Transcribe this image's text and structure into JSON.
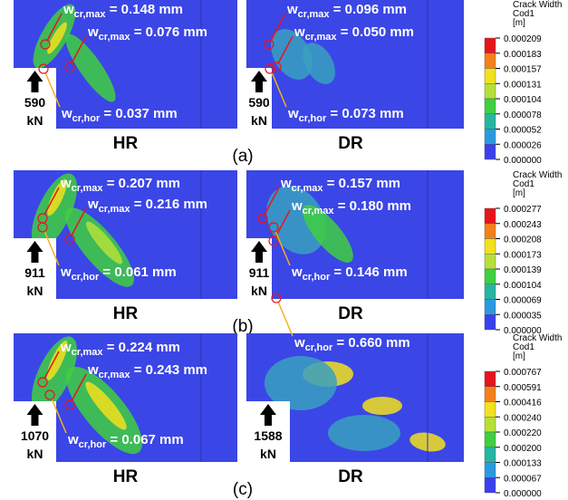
{
  "rows": [
    {
      "label": "(a)",
      "panels": [
        {
          "name": "HR",
          "load": "590",
          "unit": "kN",
          "annotations": [
            {
              "symbol": "w",
              "subscript": "cr,max",
              "text": " = 0.148 mm"
            },
            {
              "symbol": "w",
              "subscript": "cr,max",
              "text": " = 0.076 mm"
            },
            {
              "symbol": "w",
              "subscript": "cr,hor",
              "text": " = 0.037 mm"
            }
          ]
        },
        {
          "name": "DR",
          "load": "590",
          "unit": "kN",
          "annotations": [
            {
              "symbol": "w",
              "subscript": "cr,max",
              "text": " = 0.096 mm"
            },
            {
              "symbol": "w",
              "subscript": "cr,max",
              "text": " = 0.050 mm"
            },
            {
              "symbol": "w",
              "subscript": "cr,hor",
              "text": " = 0.073 mm"
            }
          ]
        }
      ],
      "legend": {
        "title": [
          "Crack Width",
          "Cod1",
          "[m]"
        ],
        "ticks": [
          "0.000209",
          "0.000183",
          "0.000157",
          "0.000131",
          "0.000104",
          "0.000078",
          "0.000052",
          "0.000026",
          "0.000000"
        ]
      }
    },
    {
      "label": "(b)",
      "panels": [
        {
          "name": "HR",
          "load": "911",
          "unit": "kN",
          "annotations": [
            {
              "symbol": "w",
              "subscript": "cr,max",
              "text": " = 0.207 mm"
            },
            {
              "symbol": "w",
              "subscript": "cr,max",
              "text": " = 0.216 mm"
            },
            {
              "symbol": "w",
              "subscript": "cr,hor",
              "text": " = 0.061 mm"
            }
          ]
        },
        {
          "name": "DR",
          "load": "911",
          "unit": "kN",
          "annotations": [
            {
              "symbol": "w",
              "subscript": "cr,max",
              "text": " = 0.157 mm"
            },
            {
              "symbol": "w",
              "subscript": "cr,max",
              "text": " = 0.180 mm"
            },
            {
              "symbol": "w",
              "subscript": "cr,hor",
              "text": " = 0.146 mm"
            }
          ]
        }
      ],
      "legend": {
        "title": [
          "Crack Width",
          "Cod1",
          "[m]"
        ],
        "ticks": [
          "0.000277",
          "0.000243",
          "0.000208",
          "0.000173",
          "0.000139",
          "0.000104",
          "0.000069",
          "0.000035",
          "0.000000"
        ]
      }
    },
    {
      "label": "(c)",
      "panels": [
        {
          "name": "HR",
          "load": "1070",
          "unit": "kN",
          "annotations": [
            {
              "symbol": "w",
              "subscript": "cr,max",
              "text": " = 0.224 mm"
            },
            {
              "symbol": "w",
              "subscript": "cr,max",
              "text": " = 0.243 mm"
            },
            {
              "symbol": "w",
              "subscript": "cr,hor",
              "text": " = 0.067 mm"
            }
          ]
        },
        {
          "name": "DR",
          "load": "1588",
          "unit": "kN",
          "annotations": [
            {
              "symbol": "w",
              "subscript": "cr,hor",
              "text": " = 0.660 mm"
            }
          ]
        }
      ],
      "legend": {
        "title": [
          "Crack Width",
          "Cod1",
          "[m]"
        ],
        "ticks": [
          "0.000767",
          "0.000591",
          "0.000416",
          "0.000240",
          "0.000220",
          "0.000200",
          "0.000133",
          "0.000067",
          "0.000000"
        ]
      }
    }
  ]
}
